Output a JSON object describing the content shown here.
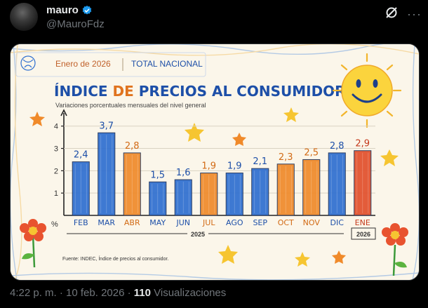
{
  "tweet": {
    "author_name": "mauro",
    "author_handle": "@MauroFdz",
    "timestamp": "4:22 p. m. · 10 feb. 2026 · ",
    "views_count": "110",
    "views_label": " Visualizaciones",
    "verified_badge": "verified-badge-icon"
  },
  "infographic": {
    "period": "Enero de 2026",
    "scope": "TOTAL NACIONAL",
    "title_part1": "ÍNDICE ",
    "title_part2": "DE ",
    "title_part3": "PRECIOS AL CONSUMIDOR",
    "subtitle": "Variaciones porcentuales mensuales del nivel general",
    "source": "Fuente: INDEC, Índice de precios al consumidor.",
    "year_2025": "2025",
    "year_2026": "2026",
    "percent_symbol": "%"
  },
  "chart_data": {
    "type": "bar",
    "title": "ÍNDICE DE PRECIOS AL CONSUMIDOR",
    "subtitle": "Variaciones porcentuales mensuales del nivel general",
    "categories": [
      "FEB",
      "MAR",
      "ABR",
      "MAY",
      "JUN",
      "JUL",
      "AGO",
      "SEP",
      "OCT",
      "NOV",
      "DIC",
      "ENE"
    ],
    "values": [
      2.4,
      3.7,
      2.8,
      1.5,
      1.6,
      1.9,
      1.9,
      2.1,
      2.3,
      2.5,
      2.8,
      2.9
    ],
    "value_labels": [
      "2,4",
      "3,7",
      "2,8",
      "1,5",
      "1,6",
      "1,9",
      "1,9",
      "2,1",
      "2,3",
      "2,5",
      "2,8",
      "2,9"
    ],
    "colors": [
      "#2f6fd0",
      "#2f6fd0",
      "#f08a2a",
      "#2f6fd0",
      "#2f6fd0",
      "#f08a2a",
      "#2f6fd0",
      "#2f6fd0",
      "#f08a2a",
      "#f08a2a",
      "#2f6fd0",
      "#e2502c"
    ],
    "label_colors": [
      "#1d4fa8",
      "#1d4fa8",
      "#d26a14",
      "#1d4fa8",
      "#1d4fa8",
      "#d26a14",
      "#1d4fa8",
      "#1d4fa8",
      "#d26a14",
      "#d26a14",
      "#1d4fa8",
      "#c43a1c"
    ],
    "yticks": [
      "4",
      "3",
      "2",
      "1"
    ],
    "ytick_values": [
      4,
      3,
      2,
      1
    ],
    "ylim": [
      0,
      4.4
    ],
    "xlabel": "",
    "ylabel": "%",
    "grid": true
  },
  "colors": {
    "brand_blue": "#1d9bf0",
    "muted_text": "#71767b",
    "title_blue": "#1d4fa8",
    "title_orange": "#e0731e",
    "title_red": "#c43a1c"
  }
}
